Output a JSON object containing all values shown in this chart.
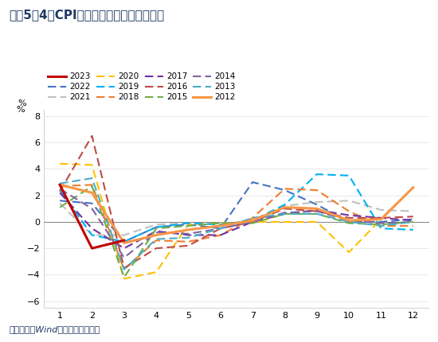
{
  "title": "图表5：4月CPI食品分项环比降幅有所收窄",
  "ylabel": "%",
  "source": "资料来源：Wind，国盛证券研究所",
  "xlim": [
    0.5,
    12.5
  ],
  "ylim": [
    -6.5,
    8.5
  ],
  "yticks": [
    -6,
    -4,
    -2,
    0,
    2,
    4,
    6,
    8
  ],
  "xticks": [
    1,
    2,
    3,
    4,
    5,
    6,
    7,
    8,
    9,
    10,
    11,
    12
  ],
  "series": {
    "2023": {
      "data": [
        2.8,
        -2.0,
        -1.4,
        null,
        null,
        null,
        null,
        null,
        null,
        null,
        null,
        null
      ],
      "color": "#C00000",
      "linestyle": "solid",
      "linewidth": 2.2,
      "zorder": 10
    },
    "2022": {
      "data": [
        1.6,
        1.4,
        -1.5,
        -0.4,
        -0.2,
        -0.5,
        3.0,
        2.4,
        1.3,
        0.0,
        0.0,
        0.2
      ],
      "color": "#4472C4",
      "linestyle": "dashed",
      "linewidth": 1.5,
      "zorder": 5
    },
    "2021": {
      "data": [
        1.4,
        -1.0,
        -1.0,
        -0.2,
        -0.1,
        -0.2,
        0.0,
        1.2,
        1.5,
        1.6,
        0.9,
        0.8
      ],
      "color": "#BFBFBF",
      "linestyle": "dashed",
      "linewidth": 1.5,
      "zorder": 5
    },
    "2020": {
      "data": [
        4.4,
        4.3,
        -4.3,
        -3.8,
        -0.2,
        -0.1,
        0.0,
        0.0,
        0.0,
        -2.3,
        0.2,
        2.6
      ],
      "color": "#FFC000",
      "linestyle": "dashed",
      "linewidth": 1.5,
      "zorder": 5
    },
    "2019": {
      "data": [
        2.4,
        -1.0,
        -1.5,
        -0.4,
        -0.1,
        -0.2,
        0.1,
        1.3,
        3.6,
        3.5,
        -0.5,
        -0.6
      ],
      "color": "#00B0F0",
      "linestyle": "dashed",
      "linewidth": 1.5,
      "zorder": 5
    },
    "2018": {
      "data": [
        2.7,
        2.8,
        -3.6,
        -1.4,
        -1.5,
        -1.0,
        0.3,
        2.5,
        2.4,
        0.8,
        -0.3,
        -0.3
      ],
      "color": "#ED7D31",
      "linestyle": "dashed",
      "linewidth": 1.5,
      "zorder": 5
    },
    "2017": {
      "data": [
        2.2,
        -0.5,
        -2.0,
        -0.7,
        -1.0,
        -1.0,
        0.0,
        0.6,
        0.9,
        0.5,
        0.3,
        0.1
      ],
      "color": "#7030A0",
      "linestyle": "dashed",
      "linewidth": 1.5,
      "zorder": 5
    },
    "2016": {
      "data": [
        2.3,
        6.5,
        -3.5,
        -2.0,
        -1.8,
        -0.5,
        0.0,
        1.0,
        0.8,
        0.3,
        0.3,
        0.4
      ],
      "color": "#BE4B48",
      "linestyle": "dashed",
      "linewidth": 1.5,
      "zorder": 5
    },
    "2015": {
      "data": [
        1.1,
        2.7,
        -4.2,
        -0.5,
        -0.3,
        -0.1,
        -0.1,
        0.6,
        0.6,
        -0.1,
        -0.2,
        0.0
      ],
      "color": "#70AD47",
      "linestyle": "dashed",
      "linewidth": 1.5,
      "zorder": 5
    },
    "2014": {
      "data": [
        2.5,
        1.0,
        -2.7,
        -0.8,
        -0.9,
        -0.5,
        0.0,
        0.7,
        0.8,
        0.1,
        -0.1,
        0.0
      ],
      "color": "#8064A2",
      "linestyle": "dashed",
      "linewidth": 1.5,
      "zorder": 5
    },
    "2013": {
      "data": [
        2.9,
        3.3,
        -3.6,
        -1.3,
        -1.2,
        -0.5,
        0.3,
        0.6,
        0.6,
        0.0,
        -0.3,
        0.0
      ],
      "color": "#4BACC6",
      "linestyle": "dashed",
      "linewidth": 1.5,
      "zorder": 5
    },
    "2012": {
      "data": [
        2.8,
        2.2,
        -1.6,
        -1.0,
        -0.6,
        -0.3,
        0.1,
        1.1,
        1.0,
        0.1,
        0.2,
        2.6
      ],
      "color": "#F79646",
      "linestyle": "solid",
      "linewidth": 2.2,
      "zorder": 9
    }
  },
  "legend_order": [
    "2023",
    "2022",
    "2021",
    "2020",
    "2019",
    "2018",
    "2017",
    "2016",
    "2015",
    "2014",
    "2013",
    "2012"
  ],
  "background_color": "#FFFFFF",
  "title_color": "#1F3864",
  "source_color": "#1F3864",
  "top_bar_color": "#1F3864",
  "bottom_bar_color": "#1F3864",
  "title_fontsize": 11,
  "source_fontsize": 8
}
